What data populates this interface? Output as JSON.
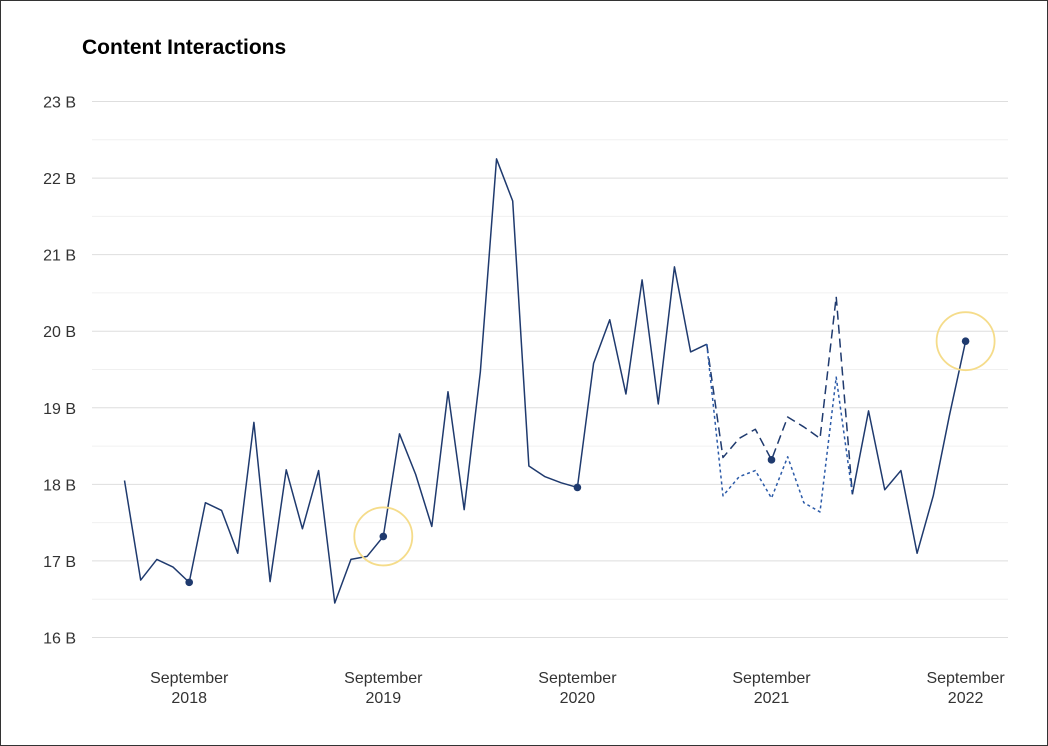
{
  "chart_data": {
    "type": "line",
    "title": "Content Interactions",
    "xlabel": "",
    "ylabel": "",
    "ylim": [
      16,
      23
    ],
    "y_unit": "B",
    "y_ticks": [
      {
        "value": 16,
        "label": "16 B"
      },
      {
        "value": 17,
        "label": "17 B"
      },
      {
        "value": 18,
        "label": "18 B"
      },
      {
        "value": 19,
        "label": "19 B"
      },
      {
        "value": 20,
        "label": "20 B"
      },
      {
        "value": 21,
        "label": "21 B"
      },
      {
        "value": 22,
        "label": "22 B"
      },
      {
        "value": 23,
        "label": "23 B"
      }
    ],
    "x_ticks": [
      {
        "date": "2018-09",
        "month": "September",
        "year": "2018"
      },
      {
        "date": "2019-09",
        "month": "September",
        "year": "2019"
      },
      {
        "date": "2020-09",
        "month": "September",
        "year": "2020"
      },
      {
        "date": "2021-09",
        "month": "September",
        "year": "2021"
      },
      {
        "date": "2022-09",
        "month": "September",
        "year": "2022"
      }
    ],
    "grid": true,
    "colors": {
      "line": "#1f3a6e",
      "dotted": "#2b5aa8",
      "highlight": "#f5dc8a",
      "grid": "#dedede",
      "grid_minor": "#f0f0f0"
    },
    "series": [
      {
        "style": "solid",
        "points": [
          [
            "2018-05",
            18.05
          ],
          [
            "2018-06",
            16.75
          ],
          [
            "2018-07",
            17.02
          ],
          [
            "2018-08",
            16.92
          ],
          [
            "2018-09",
            16.72
          ],
          [
            "2018-10",
            17.76
          ],
          [
            "2018-11",
            17.66
          ],
          [
            "2018-12",
            17.1
          ],
          [
            "2019-01",
            18.81
          ],
          [
            "2019-02",
            16.73
          ],
          [
            "2019-03",
            18.19
          ],
          [
            "2019-04",
            17.42
          ],
          [
            "2019-05",
            18.18
          ],
          [
            "2019-06",
            16.45
          ],
          [
            "2019-07",
            17.02
          ],
          [
            "2019-08",
            17.06
          ],
          [
            "2019-09",
            17.32
          ],
          [
            "2019-10",
            18.66
          ],
          [
            "2019-11",
            18.13
          ],
          [
            "2019-12",
            17.45
          ],
          [
            "2020-01",
            19.21
          ],
          [
            "2020-02",
            17.67
          ],
          [
            "2020-03",
            19.47
          ],
          [
            "2020-04",
            22.25
          ],
          [
            "2020-05",
            21.7
          ],
          [
            "2020-06",
            18.24
          ],
          [
            "2020-07",
            18.1
          ],
          [
            "2020-08",
            18.02
          ],
          [
            "2020-09",
            17.96
          ],
          [
            "2020-10",
            19.58
          ],
          [
            "2020-11",
            20.15
          ],
          [
            "2020-12",
            19.18
          ],
          [
            "2021-01",
            20.67
          ],
          [
            "2021-02",
            19.05
          ],
          [
            "2021-03",
            20.84
          ],
          [
            "2021-04",
            19.73
          ],
          [
            "2021-05",
            19.83
          ]
        ]
      },
      {
        "style": "dashed",
        "points": [
          [
            "2021-05",
            19.83
          ],
          [
            "2021-06",
            18.35
          ],
          [
            "2021-07",
            18.6
          ],
          [
            "2021-08",
            18.72
          ],
          [
            "2021-09",
            18.32
          ],
          [
            "2021-10",
            18.88
          ],
          [
            "2021-11",
            18.75
          ],
          [
            "2021-12",
            18.6
          ],
          [
            "2022-01",
            20.45
          ],
          [
            "2022-02",
            17.87
          ]
        ]
      },
      {
        "style": "dotted",
        "points": [
          [
            "2021-05",
            19.83
          ],
          [
            "2021-06",
            17.85
          ],
          [
            "2021-07",
            18.1
          ],
          [
            "2021-08",
            18.18
          ],
          [
            "2021-09",
            17.82
          ],
          [
            "2021-10",
            18.36
          ],
          [
            "2021-11",
            17.76
          ],
          [
            "2021-12",
            17.64
          ],
          [
            "2022-01",
            19.4
          ],
          [
            "2022-02",
            17.87
          ]
        ]
      },
      {
        "style": "solid",
        "points": [
          [
            "2022-02",
            17.87
          ],
          [
            "2022-03",
            18.96
          ],
          [
            "2022-04",
            17.93
          ],
          [
            "2022-05",
            18.18
          ],
          [
            "2022-06",
            17.1
          ],
          [
            "2022-07",
            17.85
          ],
          [
            "2022-08",
            18.9
          ],
          [
            "2022-09",
            19.87
          ]
        ]
      }
    ],
    "markers": [
      {
        "date": "2018-09",
        "value": 16.72,
        "highlight": false
      },
      {
        "date": "2019-09",
        "value": 17.32,
        "highlight": true
      },
      {
        "date": "2020-09",
        "value": 17.96,
        "highlight": false
      },
      {
        "date": "2021-09",
        "value": 18.32,
        "highlight": false
      },
      {
        "date": "2022-09",
        "value": 19.87,
        "highlight": true
      }
    ]
  }
}
